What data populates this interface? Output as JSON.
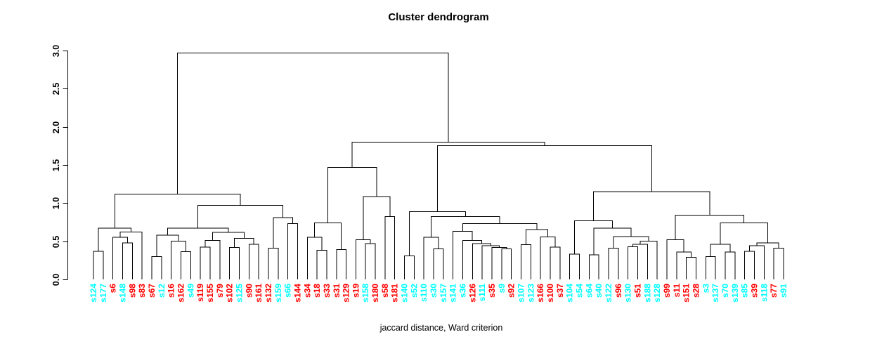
{
  "title": "Cluster dendrogram",
  "subtitle": "jaccard distance, Ward criterion",
  "colors": {
    "line": "#000000",
    "cluster_red": "#FF0000",
    "cluster_cyan": "#00FFFF",
    "background": "#FFFFFF"
  },
  "chart_data": {
    "type": "dendrogram",
    "title": "Cluster dendrogram",
    "xlabel": "jaccard distance, Ward criterion",
    "ylabel": "",
    "ylim": [
      0,
      3
    ],
    "yticks": [
      0,
      0.5,
      1,
      1.5,
      2,
      2.5,
      3
    ],
    "ytick_labels": [
      "0.0",
      "0.5",
      "1.0",
      "1.5",
      "2.0",
      "2.5",
      "3.0"
    ],
    "grid": false,
    "legend": "none",
    "leaves": [
      {
        "label": "s124",
        "color": "#00FFFF"
      },
      {
        "label": "s177",
        "color": "#00FFFF"
      },
      {
        "label": "s6",
        "color": "#FF0000"
      },
      {
        "label": "s148",
        "color": "#00FFFF"
      },
      {
        "label": "s98",
        "color": "#FF0000"
      },
      {
        "label": "s83",
        "color": "#FF0000"
      },
      {
        "label": "s67",
        "color": "#FF0000"
      },
      {
        "label": "s12",
        "color": "#00FFFF"
      },
      {
        "label": "s16",
        "color": "#FF0000"
      },
      {
        "label": "s162",
        "color": "#FF0000"
      },
      {
        "label": "s49",
        "color": "#00FFFF"
      },
      {
        "label": "s119",
        "color": "#FF0000"
      },
      {
        "label": "s155",
        "color": "#FF0000"
      },
      {
        "label": "s79",
        "color": "#FF0000"
      },
      {
        "label": "s102",
        "color": "#FF0000"
      },
      {
        "label": "s125",
        "color": "#00FFFF"
      },
      {
        "label": "s90",
        "color": "#FF0000"
      },
      {
        "label": "s161",
        "color": "#FF0000"
      },
      {
        "label": "s132",
        "color": "#FF0000"
      },
      {
        "label": "s159",
        "color": "#00FFFF"
      },
      {
        "label": "s66",
        "color": "#00FFFF"
      },
      {
        "label": "s144",
        "color": "#FF0000"
      },
      {
        "label": "s34",
        "color": "#FF0000"
      },
      {
        "label": "s18",
        "color": "#FF0000"
      },
      {
        "label": "s33",
        "color": "#FF0000"
      },
      {
        "label": "s31",
        "color": "#FF0000"
      },
      {
        "label": "s129",
        "color": "#FF0000"
      },
      {
        "label": "s19",
        "color": "#FF0000"
      },
      {
        "label": "s158",
        "color": "#00FFFF"
      },
      {
        "label": "s180",
        "color": "#FF0000"
      },
      {
        "label": "s58",
        "color": "#FF0000"
      },
      {
        "label": "s181",
        "color": "#FF0000"
      },
      {
        "label": "s140",
        "color": "#00FFFF"
      },
      {
        "label": "s52",
        "color": "#00FFFF"
      },
      {
        "label": "s110",
        "color": "#00FFFF"
      },
      {
        "label": "s30",
        "color": "#00FFFF"
      },
      {
        "label": "s157",
        "color": "#00FFFF"
      },
      {
        "label": "s141",
        "color": "#00FFFF"
      },
      {
        "label": "s36",
        "color": "#00FFFF"
      },
      {
        "label": "s126",
        "color": "#FF0000"
      },
      {
        "label": "s111",
        "color": "#00FFFF"
      },
      {
        "label": "s35",
        "color": "#FF0000"
      },
      {
        "label": "s9",
        "color": "#00FFFF"
      },
      {
        "label": "s92",
        "color": "#FF0000"
      },
      {
        "label": "s107",
        "color": "#00FFFF"
      },
      {
        "label": "s123",
        "color": "#00FFFF"
      },
      {
        "label": "s166",
        "color": "#FF0000"
      },
      {
        "label": "s100",
        "color": "#FF0000"
      },
      {
        "label": "s37",
        "color": "#FF0000"
      },
      {
        "label": "s104",
        "color": "#00FFFF"
      },
      {
        "label": "s54",
        "color": "#00FFFF"
      },
      {
        "label": "s64",
        "color": "#00FFFF"
      },
      {
        "label": "s40",
        "color": "#00FFFF"
      },
      {
        "label": "s122",
        "color": "#00FFFF"
      },
      {
        "label": "s96",
        "color": "#FF0000"
      },
      {
        "label": "s130",
        "color": "#00FFFF"
      },
      {
        "label": "s51",
        "color": "#FF0000"
      },
      {
        "label": "s188",
        "color": "#00FFFF"
      },
      {
        "label": "s128",
        "color": "#00FFFF"
      },
      {
        "label": "s99",
        "color": "#FF0000"
      },
      {
        "label": "s11",
        "color": "#FF0000"
      },
      {
        "label": "s151",
        "color": "#FF0000"
      },
      {
        "label": "s28",
        "color": "#FF0000"
      },
      {
        "label": "s3",
        "color": "#00FFFF"
      },
      {
        "label": "s137",
        "color": "#00FFFF"
      },
      {
        "label": "s70",
        "color": "#00FFFF"
      },
      {
        "label": "s139",
        "color": "#00FFFF"
      },
      {
        "label": "s85",
        "color": "#00FFFF"
      },
      {
        "label": "s39",
        "color": "#FF0000"
      },
      {
        "label": "s118",
        "color": "#00FFFF"
      },
      {
        "label": "s77",
        "color": "#FF0000"
      },
      {
        "label": "s91",
        "color": "#00FFFF"
      }
    ],
    "tree": [
      2.97,
      [
        1.12,
        [
          0.674,
          [
            0.37,
            "s124",
            "s177"
          ],
          [
            0.62,
            [
              0.55,
              "s6",
              [
                0.48,
                "s148",
                "s98"
              ]
            ],
            "s83"
          ]
        ],
        [
          0.97,
          [
            0.672,
            [
              0.58,
              [
                0.3,
                "s67",
                "s12"
              ],
              [
                0.5,
                "s16",
                [
                  0.365,
                  "s162",
                  "s49"
                ]
              ]
            ],
            [
              0.616,
              [
                0.51,
                [
                  0.425,
                  "s119",
                  "s155"
                ],
                "s79"
              ],
              [
                0.54,
                [
                  0.42,
                  "s102",
                  "s125"
                ],
                [
                  0.46,
                  "s90",
                  "s161"
                ]
              ]
            ]
          ],
          [
            0.81,
            [
              0.41,
              "s132",
              "s159"
            ],
            [
              0.73,
              "s66",
              "s144"
            ]
          ]
        ]
      ],
      [
        1.8,
        [
          1.47,
          [
            0.74,
            [
              0.55,
              "s34",
              [
                0.38,
                "s18",
                "s33"
              ]
            ],
            [
              0.39,
              "s31",
              "s129"
            ]
          ],
          [
            1.085,
            [
              0.52,
              "s19",
              [
                0.47,
                "s158",
                "s180"
              ]
            ],
            [
              0.825,
              "s58",
              "s181"
            ]
          ]
        ],
        [
          1.755,
          [
            0.886,
            [
              0.31,
              "s140",
              "s52"
            ],
            [
              0.825,
              [
                0.55,
                "s110",
                [
                  0.4,
                  "s30",
                  "s157"
                ]
              ],
              [
                0.73,
                [
                  0.63,
                  "s141",
                  [
                    0.51,
                    "s36",
                    [
                      0.47,
                      "s126",
                      [
                        0.44,
                        "s111",
                        [
                          0.42,
                          "s35",
                          [
                            0.4,
                            "s9",
                            "s92"
                          ]
                        ]
                      ]
                    ]
                  ]
                ],
                [
                  0.655,
                  [
                    0.455,
                    "s107",
                    "s123"
                  ],
                  [
                    0.555,
                    "s166",
                    [
                      0.425,
                      "s100",
                      "s37"
                    ]
                  ]
                ]
              ]
            ]
          ],
          [
            1.15,
            [
              0.77,
              [
                0.33,
                "s104",
                "s54"
              ],
              [
                0.67,
                [
                  0.32,
                  "s64",
                  "s40"
                ],
                [
                  0.56,
                  [
                    0.41,
                    "s122",
                    "s96"
                  ],
                  [
                    0.5,
                    [
                      0.46,
                      [
                        0.43,
                        "s130",
                        "s51"
                      ],
                      "s188"
                    ],
                    "s128"
                  ]
                ]
              ]
            ],
            [
              0.84,
              [
                0.52,
                "s99",
                [
                  0.36,
                  "s11",
                  [
                    0.29,
                    "s151",
                    "s28"
                  ]
                ]
              ],
              [
                0.74,
                [
                  0.46,
                  [
                    0.3,
                    "s3",
                    "s137"
                  ],
                  [
                    0.36,
                    "s70",
                    "s139"
                  ]
                ],
                [
                  0.48,
                  [
                    0.44,
                    [
                      0.37,
                      "s85",
                      "s39"
                    ],
                    "s118"
                  ],
                  [
                    0.41,
                    "s77",
                    "s91"
                  ]
                ]
              ]
            ]
          ]
        ]
      ]
    ]
  }
}
